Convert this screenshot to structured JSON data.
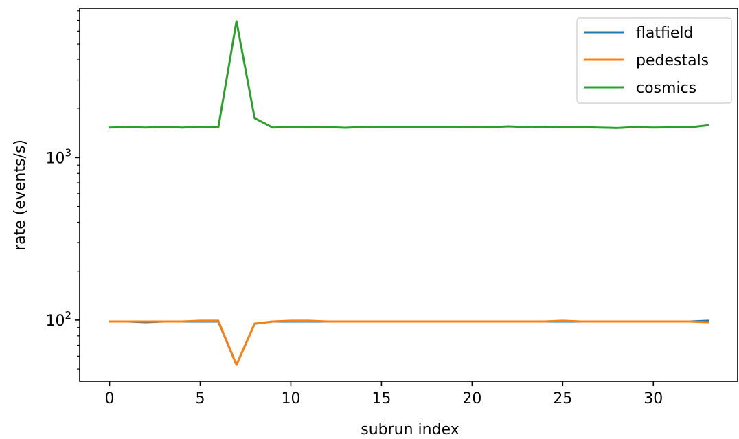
{
  "chart_data": {
    "type": "line",
    "title": "",
    "xlabel": "subrun index",
    "ylabel": "rate (events/s)",
    "yscale": "log",
    "xlim": [
      -1.65,
      34.65
    ],
    "ylim": [
      42,
      8300
    ],
    "x_ticks": [
      0,
      5,
      10,
      15,
      20,
      25,
      30
    ],
    "y_ticks": [
      {
        "value": 100,
        "base": "10",
        "exp": "2"
      },
      {
        "value": 1000,
        "base": "10",
        "exp": "3"
      }
    ],
    "grid": false,
    "legend": "top-right",
    "x": [
      0,
      1,
      2,
      3,
      4,
      5,
      6,
      7,
      8,
      9,
      10,
      11,
      12,
      13,
      14,
      15,
      16,
      17,
      18,
      19,
      20,
      21,
      22,
      23,
      24,
      25,
      26,
      27,
      28,
      29,
      30,
      31,
      32,
      33
    ],
    "series": [
      {
        "name": "flatfield",
        "color": "#1f77b4",
        "values": [
          98,
          98,
          97,
          98,
          98,
          98,
          98,
          53,
          95,
          98,
          98,
          98,
          98,
          98,
          98,
          98,
          98,
          98,
          98,
          98,
          98,
          98,
          98,
          98,
          98,
          98,
          98,
          98,
          98,
          98,
          98,
          98,
          98,
          99
        ]
      },
      {
        "name": "pedestals",
        "color": "#ff7f0e",
        "values": [
          98,
          98,
          98,
          98,
          98,
          99,
          99,
          53,
          95,
          98,
          99,
          99,
          98,
          98,
          98,
          98,
          98,
          98,
          98,
          98,
          98,
          98,
          98,
          98,
          98,
          99,
          98,
          98,
          98,
          98,
          98,
          98,
          98,
          97
        ]
      },
      {
        "name": "cosmics",
        "color": "#2ca02c",
        "values": [
          1530,
          1540,
          1530,
          1545,
          1530,
          1545,
          1535,
          6900,
          1750,
          1530,
          1545,
          1535,
          1540,
          1525,
          1540,
          1545,
          1545,
          1545,
          1545,
          1545,
          1540,
          1535,
          1555,
          1540,
          1550,
          1540,
          1540,
          1530,
          1520,
          1540,
          1530,
          1535,
          1535,
          1580
        ]
      }
    ]
  }
}
